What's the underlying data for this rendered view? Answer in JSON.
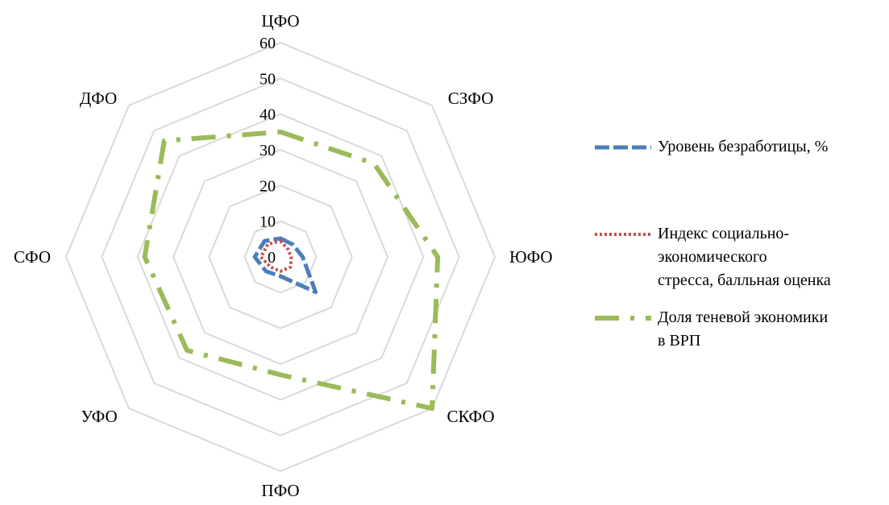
{
  "chart_data": {
    "type": "radar",
    "categories": [
      "ЦФО",
      "СЗФО",
      "ЮФО",
      "СКФО",
      "ПФО",
      "УФО",
      "СФО",
      "ДФО"
    ],
    "r_ticks": [
      "0",
      "10",
      "20",
      "30",
      "40",
      "50",
      "60"
    ],
    "rlim": [
      0,
      60
    ],
    "grid": true,
    "legend_position": "right",
    "series": [
      {
        "name": "Уровень безработицы, %",
        "values": [
          5.2,
          4.9,
          6.2,
          13.9,
          5.4,
          5.7,
          7.2,
          6.3
        ],
        "color": "#4a7ebb",
        "style": "dashed"
      },
      {
        "name": "Индекс социально-экономического стресса, балльная оценка",
        "legend_lines": [
          "Индекс  социально-",
          "экономического",
          "стресса, балльная оценка"
        ],
        "values": [
          4.5,
          3.0,
          3.0,
          4.0,
          4.0,
          4.0,
          5.5,
          5.0
        ],
        "color": "#c0504d",
        "style": "dotted"
      },
      {
        "name": "Доля теневой экономики в ВРП",
        "legend_lines": [
          "Доля теневой экономики",
          "в ВРП"
        ],
        "values": [
          35,
          37,
          44,
          60,
          33,
          37,
          38,
          46
        ],
        "color": "#9bbb59",
        "style": "dash-dot"
      }
    ]
  }
}
